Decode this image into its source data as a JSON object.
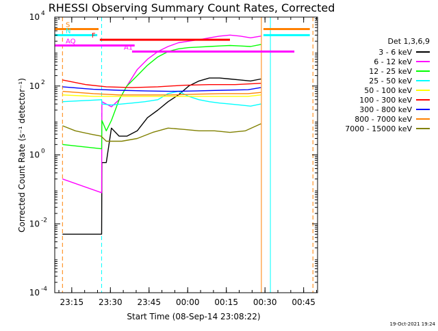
{
  "chart_data": {
    "type": "line",
    "title": "RHESSI Observing Summary Count Rates, Corrected",
    "xlabel": "Start Time (08-Sep-14 23:08:22)",
    "ylabel": "Corrected Count Rate (s⁻¹ detector⁻¹)",
    "x_units": "minutes after 23:08:22",
    "xlim": [
      0,
      102
    ],
    "ylim": [
      0.0001,
      10000
    ],
    "yscale": "log",
    "x_ticks": [
      {
        "label": "23:15",
        "value": 6.6
      },
      {
        "label": "23:30",
        "value": 21.6
      },
      {
        "label": "23:45",
        "value": 36.6
      },
      {
        "label": "00:00",
        "value": 51.6
      },
      {
        "label": "00:15",
        "value": 66.6
      },
      {
        "label": "00:30",
        "value": 81.6
      },
      {
        "label": "00:45",
        "value": 96.6
      }
    ],
    "y_ticks": [
      {
        "base": "10",
        "exp": "-4",
        "value": 0.0001
      },
      {
        "base": "10",
        "exp": "-2",
        "value": 0.01
      },
      {
        "base": "10",
        "exp": "0",
        "value": 1
      },
      {
        "base": "10",
        "exp": "2",
        "value": 100
      },
      {
        "base": "10",
        "exp": "4",
        "value": 10000
      }
    ],
    "legend_title": "Det 1,3,6,9",
    "legend_position": "right",
    "series": [
      {
        "name": "3 - 6 keV",
        "color": "#000000",
        "x": [
          3,
          18.2,
          18.3,
          20,
          22,
          25,
          28,
          32,
          36,
          40,
          44,
          48,
          52,
          56,
          60,
          64,
          68,
          72,
          76,
          80
        ],
        "y": [
          0.005,
          0.005,
          0.6,
          0.6,
          6,
          3.5,
          3.5,
          5,
          12,
          20,
          35,
          55,
          100,
          140,
          170,
          170,
          160,
          150,
          140,
          160
        ]
      },
      {
        "name": "6 - 12 keV",
        "color": "#ff00ff",
        "x": [
          3,
          18.2,
          18.3,
          20,
          22,
          25,
          28,
          32,
          36,
          40,
          44,
          48,
          52,
          56,
          60,
          64,
          68,
          72,
          76,
          80
        ],
        "y": [
          0.2,
          0.08,
          35,
          30,
          25,
          40,
          100,
          300,
          600,
          1000,
          1400,
          1800,
          2000,
          2200,
          2500,
          2800,
          3000,
          2800,
          2500,
          2800
        ]
      },
      {
        "name": "12 - 25 keV",
        "color": "#00ff00",
        "x": [
          3,
          18.2,
          18.3,
          20,
          22,
          25,
          28,
          32,
          36,
          40,
          44,
          48,
          52,
          56,
          60,
          64,
          68,
          72,
          76,
          80
        ],
        "y": [
          2,
          1.5,
          10,
          5,
          10,
          40,
          100,
          200,
          400,
          700,
          1000,
          1200,
          1300,
          1350,
          1400,
          1450,
          1500,
          1450,
          1400,
          1600
        ]
      },
      {
        "name": "25 - 50 keV",
        "color": "#00ffff",
        "x": [
          3,
          18.2,
          18.3,
          22,
          26,
          30,
          35,
          40,
          44,
          48,
          52,
          56,
          60,
          64,
          68,
          72,
          76,
          80
        ],
        "y": [
          35,
          40,
          30,
          28,
          30,
          32,
          35,
          40,
          60,
          70,
          50,
          40,
          35,
          32,
          30,
          28,
          26,
          30
        ]
      },
      {
        "name": "50 - 100 keV",
        "color": "#ffff00",
        "x": [
          3,
          15,
          25,
          35,
          45,
          55,
          65,
          75,
          80
        ],
        "y": [
          55,
          50,
          50,
          50,
          50,
          50,
          50,
          50,
          55
        ]
      },
      {
        "name": "100 - 300 keV",
        "color": "#ff0000",
        "x": [
          3,
          12,
          20,
          30,
          40,
          50,
          60,
          70,
          80
        ],
        "y": [
          150,
          110,
          95,
          90,
          95,
          105,
          110,
          110,
          120
        ]
      },
      {
        "name": "300 - 800 keV",
        "color": "#0000ff",
        "x": [
          3,
          15,
          25,
          35,
          45,
          55,
          65,
          75,
          80
        ],
        "y": [
          95,
          80,
          75,
          72,
          70,
          72,
          75,
          78,
          90
        ]
      },
      {
        "name": "800 - 7000 keV",
        "color": "#ff8000",
        "x": [
          3,
          15,
          25,
          35,
          45,
          55,
          65,
          75,
          80
        ],
        "y": [
          70,
          60,
          55,
          55,
          55,
          58,
          60,
          60,
          65
        ]
      },
      {
        "name": "7000 - 15000 keV",
        "color": "#808000",
        "x": [
          3,
          8,
          14,
          18,
          20,
          26,
          32,
          38,
          44,
          50,
          56,
          62,
          68,
          74,
          80
        ],
        "y": [
          7,
          5,
          4,
          3.5,
          2.5,
          2.5,
          3,
          4.5,
          6,
          5.5,
          5,
          5,
          4.5,
          5,
          8
        ]
      }
    ],
    "state_bars": [
      {
        "label": "S",
        "color": "#ff8000",
        "x_start": 0,
        "x_end": 17,
        "y_level": 4500
      },
      {
        "label": "N",
        "color": "#00ffff",
        "x_start": 0,
        "x_end": 16.5,
        "y_level": 3000
      },
      {
        "label": "F",
        "color": "#ff0000",
        "x_start": 17.5,
        "x_end": 68,
        "y_level": 2200
      },
      {
        "label": "AQ",
        "color": "#ff00ff",
        "x_start": 0,
        "x_end": 31,
        "y_level": 1500
      },
      {
        "label": "A1",
        "color": "#ff00ff",
        "x_start": 30,
        "x_end": 93,
        "y_level": 1000
      },
      {
        "label": "",
        "color": "#ff8000",
        "x_start": 81,
        "x_end": 99,
        "y_level": 4500
      },
      {
        "label": "",
        "color": "#00ffff",
        "x_start": 81,
        "x_end": 99,
        "y_level": 3000
      }
    ],
    "event_lines": [
      {
        "color": "#00ffff",
        "x": 0,
        "style": "solid"
      },
      {
        "color": "#ff8000",
        "x": 3,
        "style": "dashed"
      },
      {
        "color": "#00ffff",
        "x": 18.2,
        "style": "dashed"
      },
      {
        "color": "#ff8000",
        "x": 80.2,
        "style": "solid"
      },
      {
        "color": "#00ffff",
        "x": 83.7,
        "style": "solid"
      },
      {
        "color": "#ff8000",
        "x": 100.2,
        "style": "dashed"
      }
    ]
  },
  "timestamp": "19-Oct-2021 19:24"
}
